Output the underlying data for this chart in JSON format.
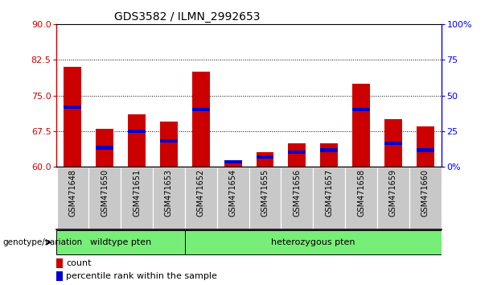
{
  "title": "GDS3582 / ILMN_2992653",
  "samples": [
    "GSM471648",
    "GSM471650",
    "GSM471651",
    "GSM471653",
    "GSM471652",
    "GSM471654",
    "GSM471655",
    "GSM471656",
    "GSM471657",
    "GSM471658",
    "GSM471659",
    "GSM471660"
  ],
  "red_values": [
    81.0,
    68.0,
    71.0,
    69.5,
    80.0,
    61.0,
    63.0,
    65.0,
    65.0,
    77.5,
    70.0,
    68.5
  ],
  "blue_values": [
    72.5,
    64.0,
    67.5,
    65.5,
    72.0,
    61.0,
    62.0,
    63.0,
    63.5,
    72.0,
    65.0,
    63.5
  ],
  "ymin": 60,
  "ymax": 90,
  "left_yticks": [
    60,
    67.5,
    75,
    82.5,
    90
  ],
  "right_yticks_pct": [
    0,
    25,
    50,
    75,
    100
  ],
  "right_yticklabels": [
    "0%",
    "25",
    "50",
    "75",
    "100%"
  ],
  "gridlines": [
    67.5,
    75,
    82.5
  ],
  "bar_color": "#cc0000",
  "blue_color": "#0000cc",
  "wildtype_label": "wildtype pten",
  "hetero_label": "heterozygous pten",
  "wildtype_count": 4,
  "hetero_count": 8,
  "genotype_label": "genotype/variation",
  "legend_count": "count",
  "legend_percentile": "percentile rank within the sample",
  "bar_width": 0.55,
  "blue_bar_height": 0.7,
  "xtick_bg": "#c8c8c8",
  "green_color": "#77ee77",
  "title_fontsize": 10,
  "label_fontsize": 7,
  "legend_fontsize": 8
}
